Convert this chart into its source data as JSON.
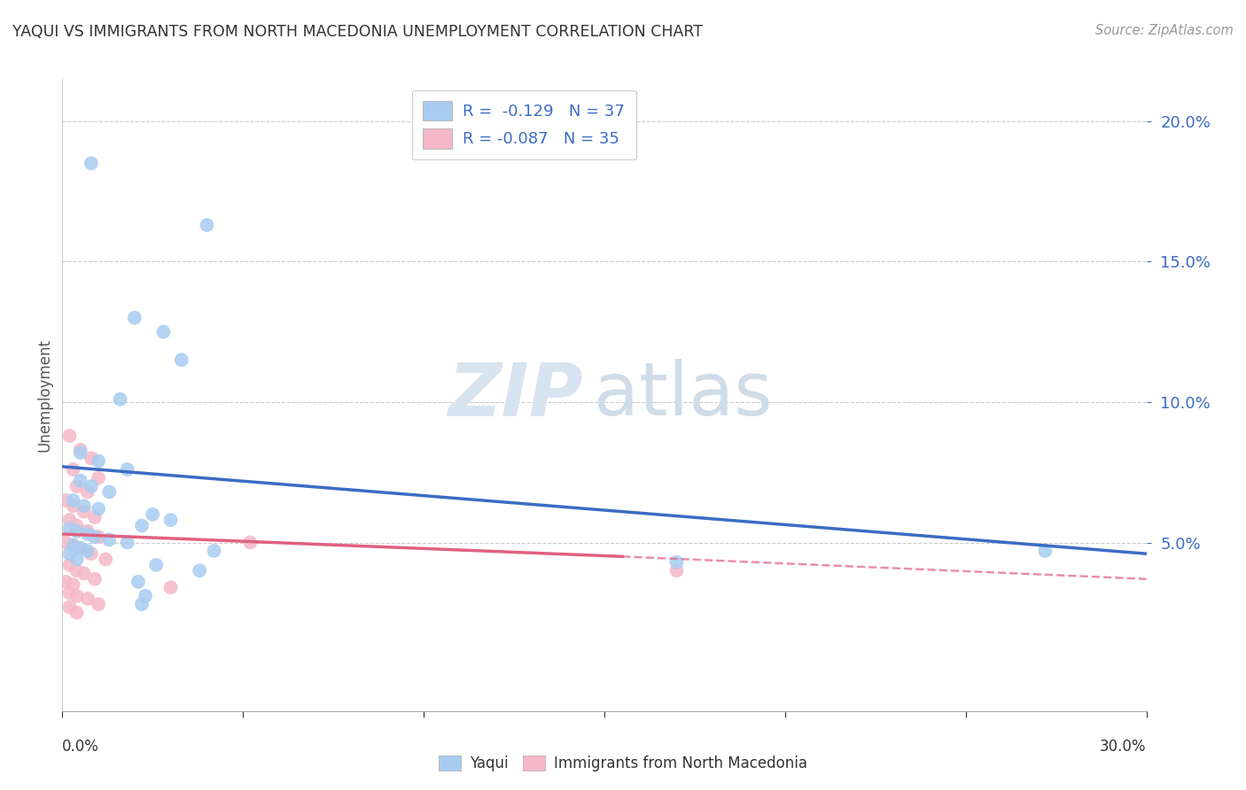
{
  "title": "YAQUI VS IMMIGRANTS FROM NORTH MACEDONIA UNEMPLOYMENT CORRELATION CHART",
  "source": "Source: ZipAtlas.com",
  "ylabel": "Unemployment",
  "yticks": [
    0.05,
    0.1,
    0.15,
    0.2
  ],
  "ytick_labels": [
    "5.0%",
    "10.0%",
    "15.0%",
    "20.0%"
  ],
  "xticks": [
    0.0,
    0.05,
    0.1,
    0.15,
    0.2,
    0.25,
    0.3
  ],
  "xlim": [
    0.0,
    0.3
  ],
  "ylim": [
    -0.01,
    0.215
  ],
  "legend_r_blue": "-0.129",
  "legend_n_blue": "37",
  "legend_r_pink": "-0.087",
  "legend_n_pink": "35",
  "watermark_zip": "ZIP",
  "watermark_atlas": "atlas",
  "blue_color": "#A8CCF0",
  "pink_color": "#F5B8C8",
  "blue_line_color": "#3B6CC4",
  "pink_line_color": "#E06080",
  "legend_text_color": "#3B6CC4",
  "blue_scatter": [
    [
      0.008,
      0.185
    ],
    [
      0.04,
      0.163
    ],
    [
      0.02,
      0.13
    ],
    [
      0.028,
      0.125
    ],
    [
      0.033,
      0.115
    ],
    [
      0.016,
      0.101
    ],
    [
      0.005,
      0.082
    ],
    [
      0.01,
      0.079
    ],
    [
      0.018,
      0.076
    ],
    [
      0.005,
      0.072
    ],
    [
      0.008,
      0.07
    ],
    [
      0.013,
      0.068
    ],
    [
      0.003,
      0.065
    ],
    [
      0.006,
      0.063
    ],
    [
      0.01,
      0.062
    ],
    [
      0.025,
      0.06
    ],
    [
      0.03,
      0.058
    ],
    [
      0.022,
      0.056
    ],
    [
      0.002,
      0.055
    ],
    [
      0.004,
      0.054
    ],
    [
      0.007,
      0.053
    ],
    [
      0.009,
      0.052
    ],
    [
      0.013,
      0.051
    ],
    [
      0.018,
      0.05
    ],
    [
      0.003,
      0.049
    ],
    [
      0.005,
      0.048
    ],
    [
      0.007,
      0.047
    ],
    [
      0.042,
      0.047
    ],
    [
      0.002,
      0.046
    ],
    [
      0.004,
      0.044
    ],
    [
      0.026,
      0.042
    ],
    [
      0.038,
      0.04
    ],
    [
      0.021,
      0.036
    ],
    [
      0.023,
      0.031
    ],
    [
      0.022,
      0.028
    ],
    [
      0.17,
      0.043
    ],
    [
      0.272,
      0.047
    ]
  ],
  "pink_scatter": [
    [
      0.002,
      0.088
    ],
    [
      0.005,
      0.083
    ],
    [
      0.008,
      0.08
    ],
    [
      0.003,
      0.076
    ],
    [
      0.01,
      0.073
    ],
    [
      0.004,
      0.07
    ],
    [
      0.007,
      0.068
    ],
    [
      0.001,
      0.065
    ],
    [
      0.003,
      0.063
    ],
    [
      0.006,
      0.061
    ],
    [
      0.009,
      0.059
    ],
    [
      0.002,
      0.058
    ],
    [
      0.004,
      0.056
    ],
    [
      0.007,
      0.054
    ],
    [
      0.01,
      0.052
    ],
    [
      0.001,
      0.05
    ],
    [
      0.003,
      0.049
    ],
    [
      0.005,
      0.048
    ],
    [
      0.008,
      0.046
    ],
    [
      0.012,
      0.044
    ],
    [
      0.002,
      0.042
    ],
    [
      0.004,
      0.04
    ],
    [
      0.006,
      0.039
    ],
    [
      0.009,
      0.037
    ],
    [
      0.001,
      0.036
    ],
    [
      0.003,
      0.035
    ],
    [
      0.03,
      0.034
    ],
    [
      0.002,
      0.032
    ],
    [
      0.004,
      0.031
    ],
    [
      0.007,
      0.03
    ],
    [
      0.01,
      0.028
    ],
    [
      0.002,
      0.027
    ],
    [
      0.004,
      0.025
    ],
    [
      0.17,
      0.04
    ],
    [
      0.052,
      0.05
    ]
  ],
  "blue_trendline": {
    "x_start": 0.0,
    "y_start": 0.077,
    "x_end": 0.3,
    "y_end": 0.046
  },
  "pink_trendline_solid": {
    "x_start": 0.0,
    "y_start": 0.053,
    "x_end": 0.155,
    "y_end": 0.045
  },
  "pink_trendline_dash": {
    "x_start": 0.155,
    "y_start": 0.045,
    "x_end": 0.3,
    "y_end": 0.037
  }
}
